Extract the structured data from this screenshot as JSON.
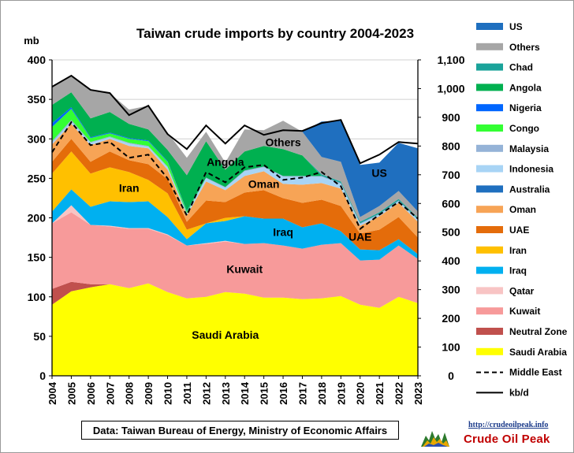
{
  "chart_data": {
    "type": "area",
    "title": "Taiwan crude imports by country 2004-2023",
    "y_left_label": "mb",
    "ylim_left": [
      0,
      400
    ],
    "ylim_right": [
      0,
      1100
    ],
    "left_ticks": [
      0,
      50,
      100,
      150,
      200,
      250,
      300,
      350,
      400
    ],
    "right_ticks": [
      "0",
      "100",
      "200",
      "300",
      "400",
      "500",
      "600",
      "700",
      "800",
      "900",
      "1,000",
      "1,100"
    ],
    "x": [
      "2004",
      "2005",
      "2006",
      "2007",
      "2008",
      "2009",
      "2010",
      "2011",
      "2012",
      "2013",
      "2014",
      "2015",
      "2016",
      "2017",
      "2018",
      "2019",
      "2020",
      "2021",
      "2022",
      "2023"
    ],
    "grid": true,
    "legend_position": "right",
    "stacked_series": [
      {
        "name": "Saudi Arabia",
        "color": "#ffff00",
        "values": [
          90,
          107,
          112,
          116,
          111,
          117,
          106,
          98,
          100,
          106,
          104,
          99,
          99,
          97,
          98,
          101,
          90,
          86,
          100,
          92
        ]
      },
      {
        "name": "Neutral Zone",
        "color": "#c0504d",
        "values": [
          20,
          12,
          4,
          0,
          0,
          0,
          0,
          0,
          0,
          0,
          0,
          0,
          0,
          0,
          0,
          0,
          0,
          0,
          0,
          0
        ]
      },
      {
        "name": "Kuwait",
        "color": "#f79a9a",
        "values": [
          83,
          88,
          75,
          73,
          75,
          69,
          72,
          67,
          67,
          64,
          63,
          69,
          66,
          64,
          68,
          67,
          56,
          61,
          65,
          56
        ]
      },
      {
        "name": "Qatar",
        "color": "#f8c4c4",
        "values": [
          0,
          9,
          0,
          1,
          1,
          1,
          1,
          0,
          1,
          1,
          0,
          0,
          0,
          0,
          0,
          0,
          0,
          0,
          0,
          0
        ]
      },
      {
        "name": "Iraq",
        "color": "#00b0f0",
        "values": [
          15,
          20,
          23,
          31,
          33,
          34,
          22,
          8,
          25,
          25,
          35,
          31,
          34,
          27,
          27,
          15,
          14,
          12,
          8,
          6
        ]
      },
      {
        "name": "Iran",
        "color": "#ffc000",
        "values": [
          48,
          48,
          42,
          43,
          38,
          27,
          30,
          12,
          0,
          4,
          0,
          0,
          0,
          0,
          0,
          0,
          0,
          0,
          0,
          0
        ]
      },
      {
        "name": "UAE",
        "color": "#e46c0a",
        "values": [
          15,
          16,
          15,
          20,
          15,
          20,
          18,
          10,
          29,
          20,
          30,
          36,
          26,
          31,
          30,
          32,
          20,
          26,
          28,
          21
        ]
      },
      {
        "name": "Oman",
        "color": "#f7a456",
        "values": [
          22,
          19,
          21,
          16,
          18,
          20,
          12,
          8,
          24,
          15,
          21,
          24,
          18,
          23,
          21,
          22,
          10,
          17,
          18,
          20
        ]
      },
      {
        "name": "Australia",
        "color": "#1f6fbf",
        "values": [
          0,
          0,
          0,
          0,
          0,
          0,
          0,
          0,
          0,
          0,
          0,
          0,
          0,
          0,
          0,
          0,
          0,
          0,
          0,
          0
        ]
      },
      {
        "name": "Indonesia",
        "color": "#a8d4f5",
        "values": [
          2,
          3,
          3,
          2,
          3,
          2,
          3,
          2,
          4,
          3,
          6,
          5,
          9,
          10,
          8,
          6,
          2,
          2,
          2,
          2
        ]
      },
      {
        "name": "Malaysia",
        "color": "#95b3d7",
        "values": [
          2,
          2,
          1,
          1,
          1,
          1,
          1,
          1,
          1,
          1,
          1,
          1,
          1,
          1,
          1,
          1,
          1,
          1,
          1,
          1
        ]
      },
      {
        "name": "Congo",
        "color": "#33ff33",
        "values": [
          18,
          14,
          5,
          4,
          5,
          6,
          6,
          2,
          0,
          0,
          0,
          0,
          0,
          0,
          0,
          0,
          0,
          0,
          0,
          0
        ]
      },
      {
        "name": "Nigeria",
        "color": "#0066ff",
        "values": [
          5,
          2,
          1,
          1,
          1,
          1,
          1,
          1,
          0,
          0,
          0,
          0,
          0,
          0,
          0,
          0,
          0,
          0,
          0,
          0
        ]
      },
      {
        "name": "Angola",
        "color": "#00b050",
        "values": [
          23,
          19,
          24,
          26,
          18,
          14,
          14,
          45,
          46,
          22,
          24,
          26,
          34,
          26,
          0,
          0,
          0,
          0,
          0,
          0
        ]
      },
      {
        "name": "Chad",
        "color": "#1aa39a",
        "values": [
          0,
          0,
          0,
          0,
          0,
          0,
          0,
          0,
          0,
          0,
          0,
          0,
          0,
          0,
          2,
          2,
          2,
          2,
          2,
          2
        ]
      },
      {
        "name": "Others",
        "color": "#a6a6a6",
        "values": [
          24,
          21,
          36,
          24,
          18,
          30,
          22,
          22,
          12,
          9,
          28,
          20,
          36,
          30,
          22,
          25,
          6,
          8,
          10,
          8
        ]
      },
      {
        "name": "US",
        "color": "#1f6fbf",
        "values": [
          0,
          0,
          0,
          0,
          0,
          0,
          0,
          0,
          0,
          0,
          0,
          0,
          0,
          0,
          45,
          52,
          66,
          55,
          61,
          80
        ]
      }
    ],
    "line_series": [
      {
        "name": "Middle East",
        "style": "dashed",
        "values": [
          283,
          321,
          292,
          296,
          276,
          280,
          250,
          203,
          258,
          245,
          264,
          267,
          248,
          251,
          258,
          240,
          186,
          204,
          220,
          199
        ]
      },
      {
        "name": "kb/d",
        "style": "solid",
        "values": [
          366,
          380,
          362,
          358,
          330,
          342,
          306,
          287,
          317,
          294,
          317,
          305,
          311,
          310,
          320,
          324,
          269,
          280,
          296,
          294
        ]
      }
    ],
    "annotations": [
      {
        "text": "Saudi Arabia",
        "year": "2013",
        "value": 52
      },
      {
        "text": "Kuwait",
        "year": "2014",
        "value": 135
      },
      {
        "text": "Iran",
        "year": "2008",
        "value": 238
      },
      {
        "text": "Iraq",
        "year": "2016",
        "value": 182
      },
      {
        "text": "Oman",
        "year": "2015",
        "value": 243
      },
      {
        "text": "UAE",
        "year": "2020",
        "value": 176
      },
      {
        "text": "Angola",
        "year": "2013",
        "value": 271
      },
      {
        "text": "Others",
        "year": "2016",
        "value": 296
      },
      {
        "text": "US",
        "year": "2021",
        "value": 257
      }
    ]
  },
  "legend_items": [
    {
      "label": "US",
      "kind": "swatch",
      "color": "#1f6fbf"
    },
    {
      "label": "Others",
      "kind": "swatch",
      "color": "#a6a6a6"
    },
    {
      "label": "Chad",
      "kind": "swatch",
      "color": "#1aa39a"
    },
    {
      "label": "Angola",
      "kind": "swatch",
      "color": "#00b050"
    },
    {
      "label": "Nigeria",
      "kind": "swatch",
      "color": "#0066ff"
    },
    {
      "label": "Congo",
      "kind": "swatch",
      "color": "#33ff33"
    },
    {
      "label": "Malaysia",
      "kind": "swatch",
      "color": "#95b3d7"
    },
    {
      "label": "Indonesia",
      "kind": "swatch",
      "color": "#a8d4f5"
    },
    {
      "label": "Australia",
      "kind": "swatch",
      "color": "#1f6fbf"
    },
    {
      "label": "Oman",
      "kind": "swatch",
      "color": "#f7a456"
    },
    {
      "label": "UAE",
      "kind": "swatch",
      "color": "#e46c0a"
    },
    {
      "label": "Iran",
      "kind": "swatch",
      "color": "#ffc000"
    },
    {
      "label": "Iraq",
      "kind": "swatch",
      "color": "#00b0f0"
    },
    {
      "label": "Qatar",
      "kind": "swatch",
      "color": "#f8c4c4"
    },
    {
      "label": "Kuwait",
      "kind": "swatch",
      "color": "#f79a9a"
    },
    {
      "label": "Neutral Zone",
      "kind": "swatch",
      "color": "#c0504d"
    },
    {
      "label": "Saudi Arabia",
      "kind": "swatch",
      "color": "#ffff00"
    },
    {
      "label": "Middle East",
      "kind": "dashed"
    },
    {
      "label": "kb/d",
      "kind": "solid"
    }
  ],
  "source_note": "Data: Taiwan Bureau of Energy, Ministry of Economic Affairs",
  "logo": {
    "url": "http://crudeoilpeak.info",
    "name": "Crude Oil Peak"
  }
}
